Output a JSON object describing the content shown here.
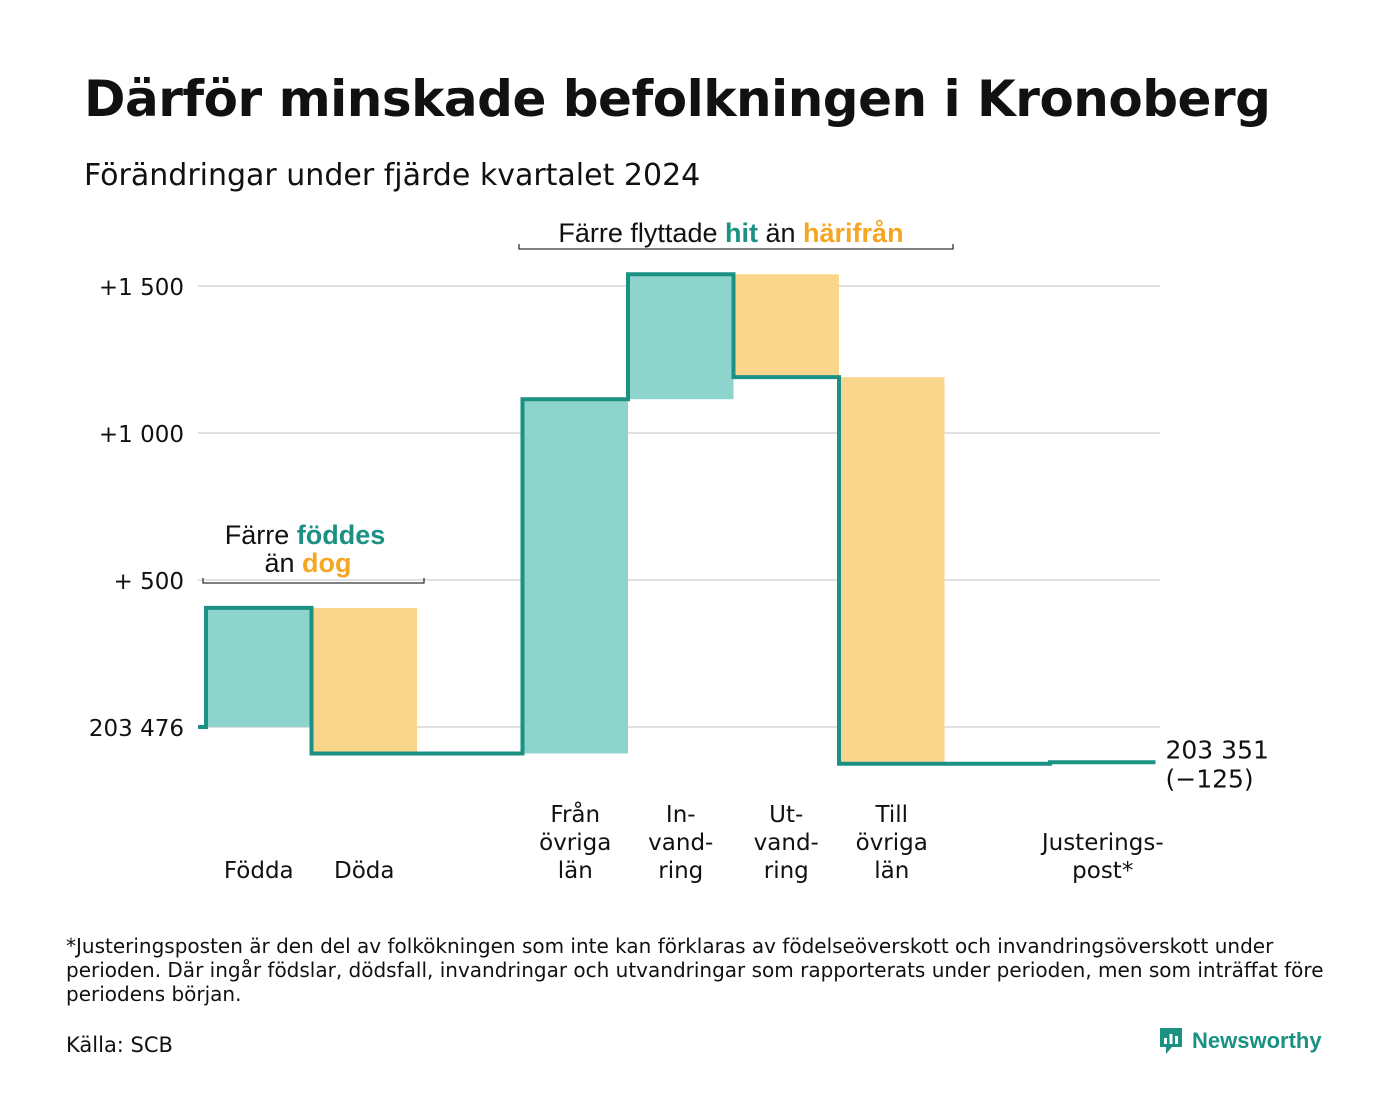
{
  "title": "Därför minskade befolkningen i Kronoberg",
  "subtitle": "Förändringar under fjärde kvartalet 2024",
  "colors": {
    "increase": "#8dd5cc",
    "decrease": "#fad68d",
    "line": "#1a9183",
    "orange_text": "#f5a623",
    "grid": "#e0e0e0"
  },
  "chart_data": {
    "type": "bar",
    "subtype": "waterfall",
    "baseline": 203476,
    "end_value": 203351,
    "net_change": -125,
    "ylim": [
      -110,
      1620
    ],
    "yticks": [
      {
        "value": 0,
        "label": "203 476"
      },
      {
        "value": 500,
        "label": "+  500"
      },
      {
        "value": 1000,
        "label": "+1 000"
      },
      {
        "value": 1500,
        "label": "+1 500"
      }
    ],
    "steps": [
      {
        "label": [
          "Födda"
        ],
        "change": 405,
        "kind": "increase"
      },
      {
        "label": [
          "Döda"
        ],
        "change": -495,
        "kind": "decrease"
      },
      {
        "label": [],
        "change": 0,
        "kind": "spacer"
      },
      {
        "label": [
          "Från",
          "övriga",
          "län"
        ],
        "change": 1205,
        "kind": "increase"
      },
      {
        "label": [
          "In-",
          "vand-",
          "ring"
        ],
        "change": 425,
        "kind": "increase"
      },
      {
        "label": [
          "Ut-",
          "vand-",
          "ring"
        ],
        "change": -350,
        "kind": "decrease"
      },
      {
        "label": [
          "Till",
          "övriga",
          "län"
        ],
        "change": -1315,
        "kind": "decrease"
      },
      {
        "label": [],
        "change": 0,
        "kind": "spacer"
      },
      {
        "label": [
          "Justerings-",
          "post*"
        ],
        "change": 5,
        "kind": "adjust"
      }
    ],
    "end_labels": [
      "203 351",
      "(−125)"
    ],
    "annotations": {
      "births": {
        "line1_pre": "Färre ",
        "line1_hl": "föddes",
        "line2_pre": "än ",
        "line2_hl": "dog"
      },
      "migration": {
        "pre": "Färre flyttade ",
        "hl1": "hit",
        "mid": " än ",
        "hl2": "härifrån"
      }
    }
  },
  "footnote": "*Justeringsposten är den del av folkökningen som inte kan förklaras av födelseöverskott och invandringsöverskott under perioden. Där ingår födslar, dödsfall, invandringar och utvandringar som rapporterats under perioden, men som inträffat före periodens början.",
  "source": "Källa: SCB",
  "brand": "Newsworthy",
  "brand_icon": "newsworthy-logo-icon"
}
